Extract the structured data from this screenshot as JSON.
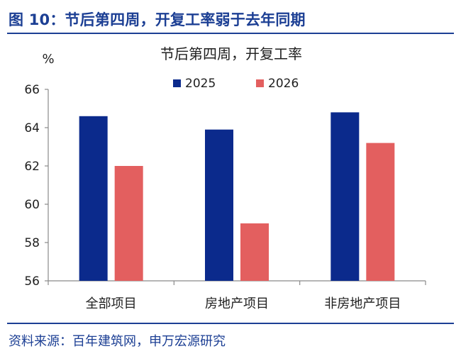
{
  "figure": {
    "title": "图 10：节后第四周，开复工率弱于去年同期",
    "source": "资料来源：百年建筑网，申万宏源研究"
  },
  "colors": {
    "brand": "#1c3f94",
    "series_2025": "#0b2a8c",
    "series_2026": "#e35f5f",
    "axis": "#8a8a8a"
  },
  "chart_data": {
    "type": "bar",
    "title": "节后第四周，开复工率",
    "unit_label": "%",
    "xlabel": "",
    "ylabel": "",
    "categories": [
      "全部项目",
      "房地产项目",
      "非房地产项目"
    ],
    "series": [
      {
        "name": "2025",
        "values": [
          64.6,
          63.9,
          64.8
        ]
      },
      {
        "name": "2026",
        "values": [
          62.0,
          59.0,
          63.2
        ]
      }
    ],
    "ylim": [
      56,
      66
    ],
    "yticks": [
      56,
      58,
      60,
      62,
      64,
      66
    ],
    "grid": false,
    "legend_position": "top"
  }
}
